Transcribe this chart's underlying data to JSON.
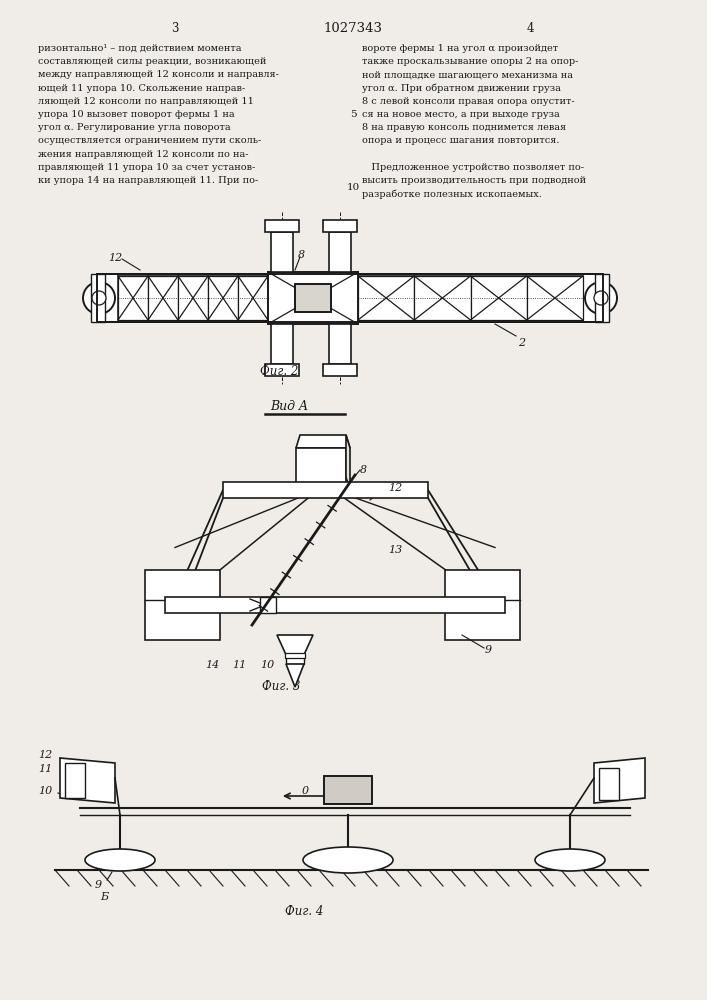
{
  "bg_color": "#f0ede8",
  "text_color": "#1a1a1a",
  "line_color": "#1a1a1a",
  "page_width": 7.07,
  "page_height": 10.0,
  "title_number": "1027343",
  "col_left_number": "3",
  "col_right_number": "4",
  "left_text": [
    "ризонтально¹ – под действием момента",
    "составляющей силы реакции, возникающей",
    "между направляющей 12 консоли и направля-",
    "ющей 11 упора 10. Скольжение направ-",
    "ляющей 12 консоли по направляющей 11",
    "упора 10 вызовет поворот фермы 1 на",
    "угол α. Регулирование угла поворота",
    "осуществляется ограничением пути сколь-",
    "жения направляющей 12 консоли по на-",
    "правляющей 11 упора 10 за счет установ-",
    "ки упора 14 на направляющей 11. При по-"
  ],
  "right_text": [
    "вороте фермы 1 на угол α произойдет",
    "также проскальзывание опоры 2 на опор-",
    "ной площадке шагающего механизма на",
    "угол α. При обратном движении груза",
    "8 с левой консоли правая опора опустит-",
    "ся на новое место, а при выходе груза",
    "8 на правую консоль поднимется левая",
    "опора и процесс шагания повторится.",
    "",
    "   Предложенное устройство позволяет по-",
    "высить производительность при подводной",
    "разработке полезных ископаемых."
  ],
  "fig2_label": "Фиг. 2",
  "fig3_label": "Фиг. 3",
  "fig4_label": "Фиг. 4",
  "vida_label": "Вид A",
  "marker_5": "5",
  "marker_10": "10"
}
